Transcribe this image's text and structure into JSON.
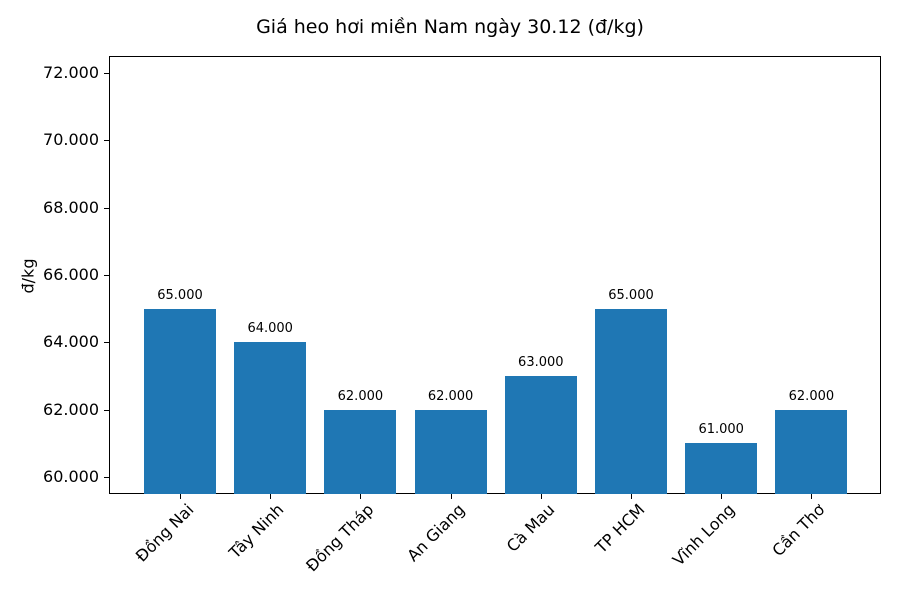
{
  "chart_data": {
    "type": "bar",
    "title": "Giá heo hơi miền Nam ngày 30.12 (đ/kg)",
    "xlabel": "",
    "ylabel": "đ/kg",
    "categories": [
      "Đồng Nai",
      "Tây Ninh",
      "Đồng Tháp",
      "An Giang",
      "Cà Mau",
      "TP HCM",
      "Vĩnh Long",
      "Cần Thơ"
    ],
    "values": [
      65000,
      64000,
      62000,
      62000,
      63000,
      65000,
      61000,
      62000
    ],
    "value_labels": [
      "65.000",
      "64.000",
      "62.000",
      "62.000",
      "63.000",
      "65.000",
      "61.000",
      "62.000"
    ],
    "ylim": [
      59500,
      72500
    ],
    "yticks": [
      60000,
      62000,
      64000,
      66000,
      68000,
      70000,
      72000
    ],
    "ytick_labels": [
      "60.000",
      "62.000",
      "64.000",
      "66.000",
      "68.000",
      "70.000",
      "72.000"
    ],
    "grid": false,
    "legend": null,
    "bar_color": "#1f77b4",
    "xtick_rotation": 45
  }
}
